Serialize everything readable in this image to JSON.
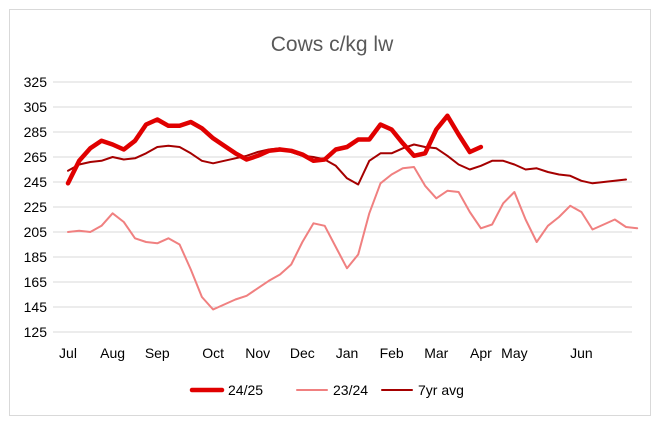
{
  "chart_data": {
    "type": "line",
    "title": "Cows c/kg lw",
    "xlabel": "",
    "ylabel": "",
    "ylim": [
      125,
      325
    ],
    "yticks": [
      125,
      145,
      165,
      185,
      205,
      225,
      245,
      265,
      285,
      305,
      325
    ],
    "xlim": [
      0,
      50
    ],
    "month_ticks": [
      {
        "label": "Jul",
        "week": 0
      },
      {
        "label": "Aug",
        "week": 4
      },
      {
        "label": "Sep",
        "week": 8
      },
      {
        "label": "Oct",
        "week": 13
      },
      {
        "label": "Nov",
        "week": 17
      },
      {
        "label": "Dec",
        "week": 21
      },
      {
        "label": "Jan",
        "week": 25
      },
      {
        "label": "Feb",
        "week": 29
      },
      {
        "label": "Mar",
        "week": 33
      },
      {
        "label": "Apr",
        "week": 37
      },
      {
        "label": "May",
        "week": 40
      },
      {
        "label": "Jun",
        "week": 46
      }
    ],
    "series": [
      {
        "name": "24/25",
        "color": "#e00000",
        "values": [
          244,
          262,
          272,
          278,
          275,
          271,
          278,
          291,
          295,
          290,
          290,
          293,
          288,
          280,
          274,
          268,
          263,
          266,
          270,
          271,
          270,
          267,
          262,
          263,
          271,
          273,
          279,
          279,
          291,
          287,
          276,
          266,
          268,
          287,
          298,
          283,
          269,
          273
        ]
      },
      {
        "name": "23/24",
        "color": "#f08080",
        "values": [
          205,
          206,
          205,
          210,
          220,
          213,
          200,
          197,
          196,
          200,
          195,
          175,
          153,
          143,
          147,
          151,
          154,
          160,
          166,
          171,
          179,
          197,
          212,
          210,
          193,
          176,
          187,
          220,
          244,
          251,
          256,
          257,
          242,
          232,
          238,
          237,
          221,
          208,
          211,
          228,
          237,
          215,
          197,
          210,
          217,
          226,
          221,
          207,
          211,
          215,
          209,
          208
        ]
      },
      {
        "name": "7yr avg",
        "color": "#a50000",
        "values": [
          254,
          259,
          261,
          262,
          265,
          263,
          264,
          268,
          273,
          274,
          273,
          268,
          262,
          260,
          262,
          264,
          266,
          269,
          271,
          272,
          269,
          266,
          265,
          263,
          258,
          248,
          243,
          262,
          268,
          268,
          272,
          275,
          273,
          272,
          266,
          259,
          255,
          258,
          262,
          262,
          259,
          255,
          256,
          253,
          251,
          250,
          246,
          244,
          245,
          246,
          247
        ]
      }
    ],
    "legend_position": "bottom"
  }
}
